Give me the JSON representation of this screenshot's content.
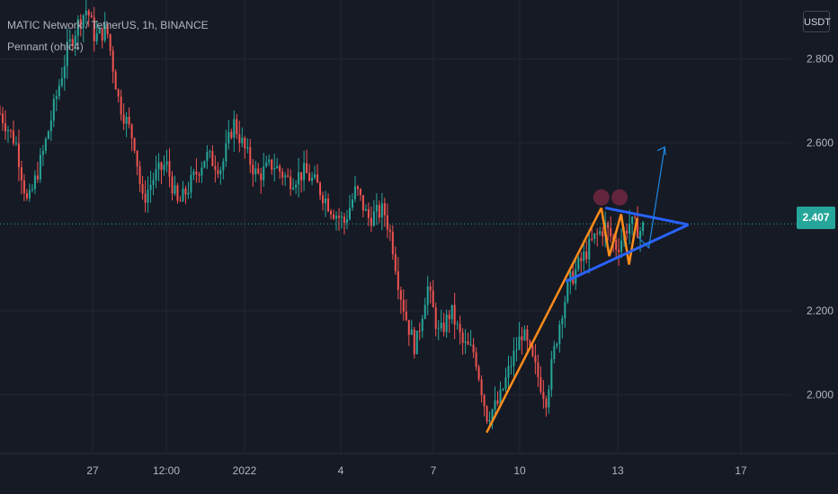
{
  "header": {
    "symbol": "MATIC Network / TetherUS, 1h, BINANCE",
    "indicator": "Pennant (ohlc4)"
  },
  "currency_button": "USDT",
  "last_price": "2.407",
  "colors": {
    "background": "#161a25",
    "grid": "#232733",
    "text": "#b2b5be",
    "up_candle": "#26a69a",
    "down_candle": "#ef5350",
    "pole": "#ff8c1a",
    "pennant": "#2962ff",
    "projection": "#1e88e5",
    "price_line": "#26a69a",
    "highlight": "#7d2a44"
  },
  "chart_data": {
    "type": "candlestick",
    "y_ticks": [
      "2.800",
      "2.600",
      "2.200",
      "2.000"
    ],
    "x_ticks": [
      "27",
      "12:00",
      "2022",
      "4",
      "7",
      "10",
      "13",
      "17"
    ],
    "ylim": [
      1.86,
      2.94
    ],
    "x_range": [
      0,
      100
    ],
    "grid": true,
    "last_price": 2.407,
    "pole": {
      "start": [
        61.5,
        1.91
      ],
      "end": [
        76,
        2.445
      ]
    },
    "pennant_upper": {
      "start": [
        76.5,
        2.445
      ],
      "end": [
        87,
        2.405
      ]
    },
    "pennant_lower": {
      "start": [
        71.5,
        2.27
      ],
      "end": [
        87,
        2.405
      ]
    },
    "zigzag": [
      [
        76,
        2.445
      ],
      [
        77,
        2.33
      ],
      [
        78.5,
        2.43
      ],
      [
        79.5,
        2.31
      ],
      [
        80.5,
        2.42
      ]
    ],
    "projection": {
      "start": [
        82,
        2.35
      ],
      "end": [
        84,
        2.59
      ]
    },
    "price_path": [
      [
        0,
        2.67
      ],
      [
        2,
        2.6
      ],
      [
        3.5,
        2.45
      ],
      [
        5.5,
        2.58
      ],
      [
        7,
        2.7
      ],
      [
        8.5,
        2.82
      ],
      [
        10,
        2.89
      ],
      [
        11,
        2.92
      ],
      [
        12,
        2.85
      ],
      [
        13.5,
        2.87
      ],
      [
        15,
        2.7
      ],
      [
        17,
        2.6
      ],
      [
        18,
        2.46
      ],
      [
        19.5,
        2.52
      ],
      [
        21,
        2.55
      ],
      [
        22.5,
        2.45
      ],
      [
        24,
        2.5
      ],
      [
        26,
        2.57
      ],
      [
        28,
        2.54
      ],
      [
        29.5,
        2.65
      ],
      [
        31,
        2.58
      ],
      [
        32.5,
        2.52
      ],
      [
        34.5,
        2.55
      ],
      [
        36.5,
        2.51
      ],
      [
        38.5,
        2.53
      ],
      [
        40,
        2.5
      ],
      [
        42,
        2.44
      ],
      [
        43.5,
        2.41
      ],
      [
        45,
        2.49
      ],
      [
        46.5,
        2.42
      ],
      [
        48.5,
        2.44
      ],
      [
        49.5,
        2.37
      ],
      [
        50.5,
        2.25
      ],
      [
        51.5,
        2.17
      ],
      [
        52.5,
        2.11
      ],
      [
        54,
        2.26
      ],
      [
        55.5,
        2.14
      ],
      [
        57,
        2.2
      ],
      [
        58.5,
        2.12
      ],
      [
        60,
        2.1
      ],
      [
        61.5,
        1.95
      ],
      [
        63,
        1.98
      ],
      [
        64.5,
        2.07
      ],
      [
        66,
        2.15
      ],
      [
        67.5,
        2.07
      ],
      [
        69,
        1.99
      ],
      [
        70,
        2.1
      ],
      [
        71,
        2.2
      ],
      [
        72,
        2.27
      ],
      [
        73.5,
        2.32
      ],
      [
        75,
        2.37
      ],
      [
        76.5,
        2.4
      ],
      [
        78,
        2.35
      ],
      [
        79.5,
        2.41
      ],
      [
        81,
        2.39
      ],
      [
        81.5,
        2.407
      ]
    ]
  }
}
